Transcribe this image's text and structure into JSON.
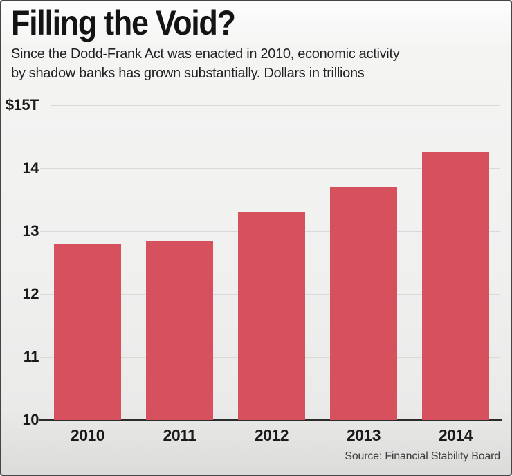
{
  "header": {
    "title": "Filling the Void?",
    "subtitle_line1": "Since the Dodd-Frank Act was enacted in 2010, economic activity",
    "subtitle_line2": "by shadow banks has grown substantially. Dollars in trillions"
  },
  "source": "Source: Financial Stability Board",
  "colors": {
    "bar": "#d6505d",
    "gridline": "#d9d9d9",
    "baseline": "#2b2b2b",
    "text": "#1a1a1a"
  },
  "chart_data": {
    "type": "bar",
    "title": "Filling the Void?",
    "subtitle": "Since the Dodd-Frank Act was enacted in 2010, economic activity by shadow banks has grown substantially. Dollars in trillions",
    "categories": [
      "2010",
      "2011",
      "2012",
      "2013",
      "2014"
    ],
    "values": [
      12.8,
      12.85,
      13.3,
      13.7,
      14.25
    ],
    "unit": "dollars in trillions",
    "ylim": [
      10,
      15
    ],
    "yticks": [
      {
        "label": "$15T",
        "value": 15
      },
      {
        "label": "14",
        "value": 14
      },
      {
        "label": "13",
        "value": 13
      },
      {
        "label": "12",
        "value": 12
      },
      {
        "label": "11",
        "value": 11
      },
      {
        "label": "10",
        "value": 10
      }
    ],
    "grid": "horizontal",
    "legend": "none",
    "source": "Source: Financial Stability Board"
  }
}
